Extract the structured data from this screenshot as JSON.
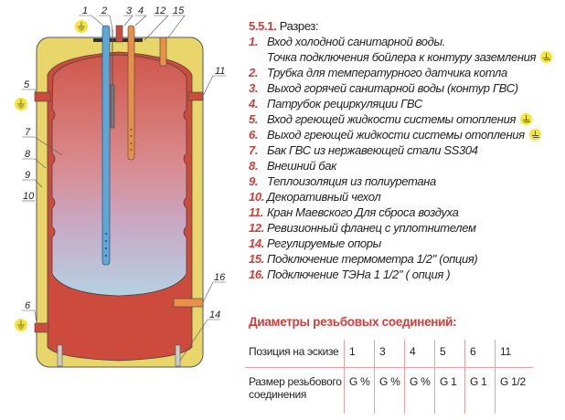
{
  "diagram": {
    "labels": [
      "1",
      "2",
      "3",
      "4",
      "12",
      "15",
      "5",
      "7",
      "8",
      "9",
      "10",
      "11",
      "16",
      "14",
      "6"
    ],
    "colors": {
      "casing": "#e9d66a",
      "tank": "#cc4b3c",
      "cold_pipe": "#5aa7d8",
      "hot_pipe": "#e8904a",
      "accent": "#c9403a",
      "ground": "#f5e53a"
    }
  },
  "legend": {
    "title_num": "5.5.1.",
    "title": "Разрез:",
    "items": [
      {
        "num": "1.",
        "text": "Вход холодной санитарной воды.",
        "ground": false
      },
      {
        "num": "",
        "text": "Точка подключения бойлера к контуру заземления",
        "ground": true
      },
      {
        "num": "2.",
        "text": "Трубка для температурного датчика котла",
        "ground": false
      },
      {
        "num": "3.",
        "text": "Выход горячей санитарной воды (контур ГВС)",
        "ground": false
      },
      {
        "num": "4.",
        "text": "Патрубок рециркуляции ГВС",
        "ground": false
      },
      {
        "num": "5.",
        "text": "Вход греющей жидкости системы отопления",
        "ground": true
      },
      {
        "num": "6.",
        "text": "Выход греющей жидкости системы отопления",
        "ground": true
      },
      {
        "num": "7.",
        "text": "Бак ГВС из нержавеющей стали SS304",
        "ground": false
      },
      {
        "num": "8.",
        "text": "Внешний бак",
        "ground": false
      },
      {
        "num": "9.",
        "text": "Теплоизоляция из полиуретана",
        "ground": false
      },
      {
        "num": "10.",
        "text": "Декоративный чехол",
        "ground": false
      },
      {
        "num": "11.",
        "text": "Кран Маевского Для сброса воздуха",
        "ground": false
      },
      {
        "num": "12.",
        "text": "Ревизионный фланец с уплотнителем",
        "ground": false
      },
      {
        "num": "14.",
        "text": "Регулируемые опоры",
        "ground": false
      },
      {
        "num": "15.",
        "text": "Подключение термометра 1/2\" (опция)",
        "ground": false
      },
      {
        "num": "16.",
        "text": "Подключение ТЭНа 1 1/2\" ( опция )",
        "ground": false
      }
    ]
  },
  "threads": {
    "title": "Диаметры резьбовых соединений:",
    "row1_header": "Позиция на эскизе",
    "row1": [
      "1",
      "3",
      "4",
      "5",
      "6",
      "11"
    ],
    "row2_header": "Размер резьбового соединения",
    "row2": [
      "G %",
      "G %",
      "G %",
      "G 1",
      "G 1",
      "G 1/2"
    ]
  }
}
